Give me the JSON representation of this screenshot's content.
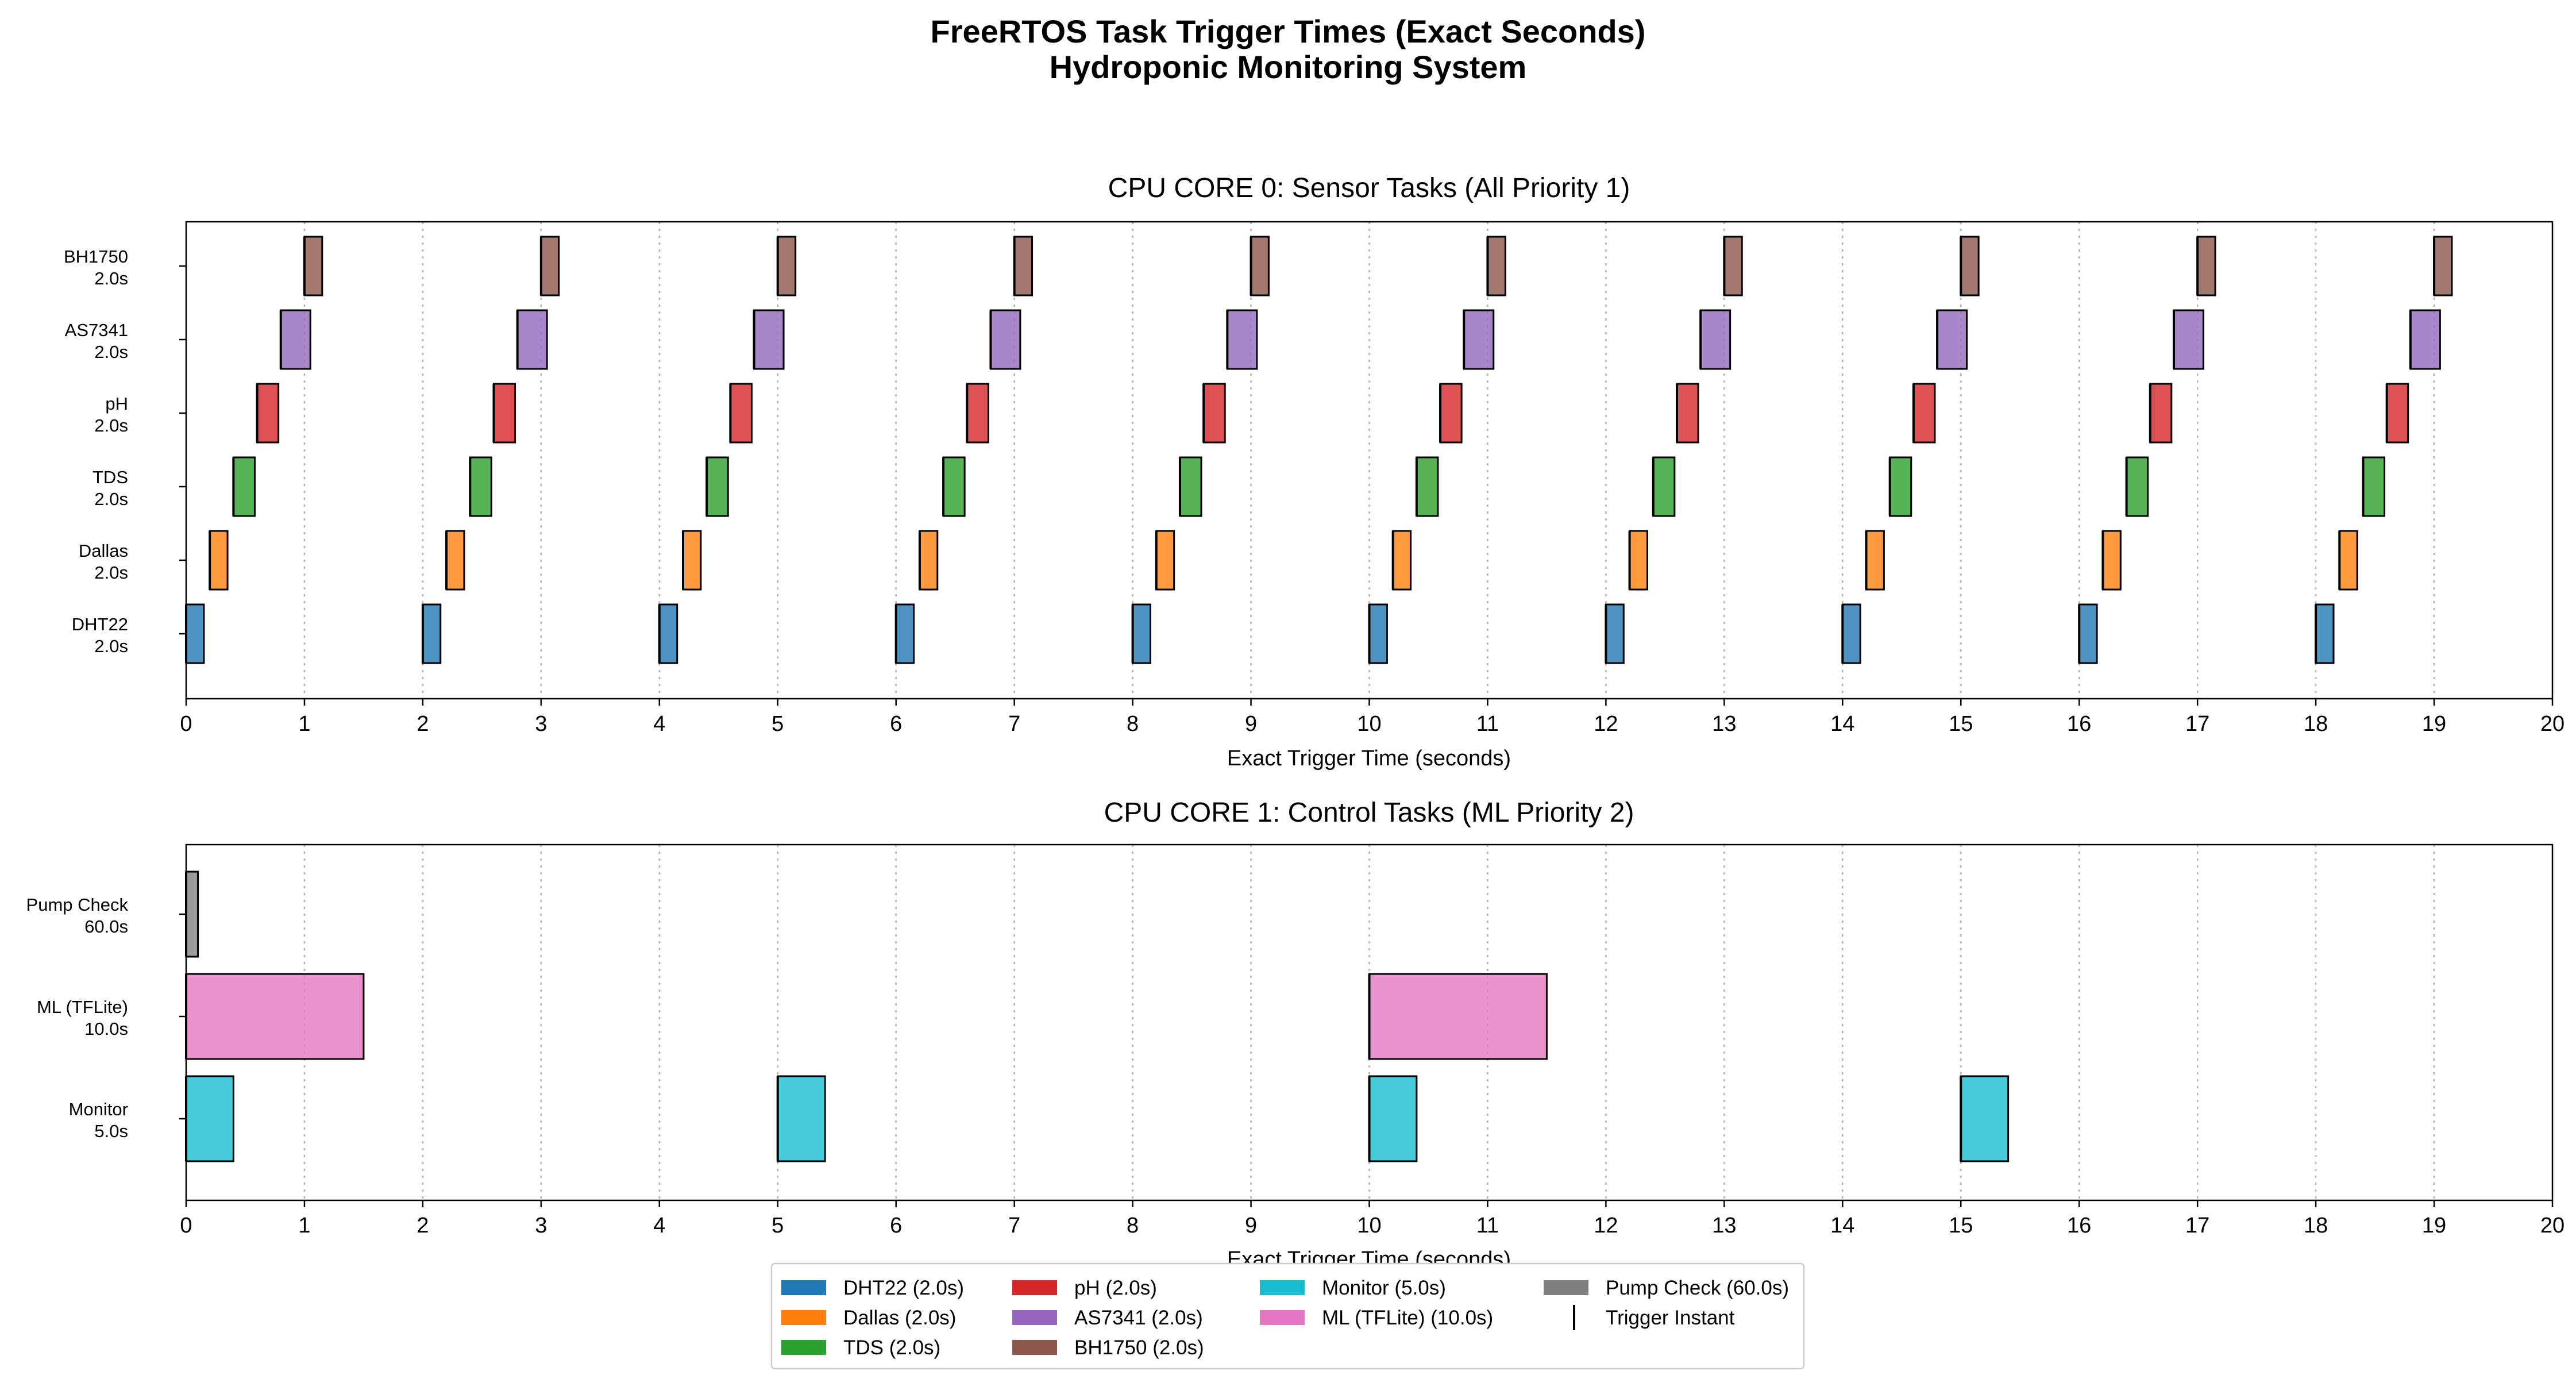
{
  "figure": {
    "title_line1": "FreeRTOS Task Trigger Times (Exact Seconds)",
    "title_line2": "Hydroponic Monitoring System"
  },
  "chart_data": [
    {
      "type": "gantt",
      "title": "CPU CORE 0: Sensor Tasks (All Priority 1)",
      "xlabel": "Exact Trigger Time (seconds)",
      "xlim": [
        0,
        20
      ],
      "xticks": [
        0,
        1,
        2,
        3,
        4,
        5,
        6,
        7,
        8,
        9,
        10,
        11,
        12,
        13,
        14,
        15,
        16,
        17,
        18,
        19,
        20
      ],
      "grid": "vertical dotted",
      "rows": [
        {
          "name": "DHT22",
          "period": "2.0s",
          "color": "#1f77b4",
          "bars": [
            [
              0,
              0.15
            ],
            [
              2,
              2.15
            ],
            [
              4,
              4.15
            ],
            [
              6,
              6.15
            ],
            [
              8,
              8.15
            ],
            [
              10,
              10.15
            ],
            [
              12,
              12.15
            ],
            [
              14,
              14.15
            ],
            [
              16,
              16.15
            ],
            [
              18,
              18.15
            ]
          ]
        },
        {
          "name": "Dallas",
          "period": "2.0s",
          "color": "#ff7f0e",
          "bars": [
            [
              0.2,
              0.35
            ],
            [
              2.2,
              2.35
            ],
            [
              4.2,
              4.35
            ],
            [
              6.2,
              6.35
            ],
            [
              8.2,
              8.35
            ],
            [
              10.2,
              10.35
            ],
            [
              12.2,
              12.35
            ],
            [
              14.2,
              14.35
            ],
            [
              16.2,
              16.35
            ],
            [
              18.2,
              18.35
            ]
          ]
        },
        {
          "name": "TDS",
          "period": "2.0s",
          "color": "#2ca02c",
          "bars": [
            [
              0.4,
              0.58
            ],
            [
              2.4,
              2.58
            ],
            [
              4.4,
              4.58
            ],
            [
              6.4,
              6.58
            ],
            [
              8.4,
              8.58
            ],
            [
              10.4,
              10.58
            ],
            [
              12.4,
              12.58
            ],
            [
              14.4,
              14.58
            ],
            [
              16.4,
              16.58
            ],
            [
              18.4,
              18.58
            ]
          ]
        },
        {
          "name": "pH",
          "period": "2.0s",
          "color": "#d62728",
          "bars": [
            [
              0.6,
              0.78
            ],
            [
              2.6,
              2.78
            ],
            [
              4.6,
              4.78
            ],
            [
              6.6,
              6.78
            ],
            [
              8.6,
              8.78
            ],
            [
              10.6,
              10.78
            ],
            [
              12.6,
              12.78
            ],
            [
              14.6,
              14.78
            ],
            [
              16.6,
              16.78
            ],
            [
              18.6,
              18.78
            ]
          ]
        },
        {
          "name": "AS7341",
          "period": "2.0s",
          "color": "#9467bd",
          "bars": [
            [
              0.8,
              1.05
            ],
            [
              2.8,
              3.05
            ],
            [
              4.8,
              5.05
            ],
            [
              6.8,
              7.05
            ],
            [
              8.8,
              9.05
            ],
            [
              10.8,
              11.05
            ],
            [
              12.8,
              13.05
            ],
            [
              14.8,
              15.05
            ],
            [
              16.8,
              17.05
            ],
            [
              18.8,
              19.05
            ]
          ]
        },
        {
          "name": "BH1750",
          "period": "2.0s",
          "color": "#8c564b",
          "bars": [
            [
              1,
              1.15
            ],
            [
              3,
              3.15
            ],
            [
              5,
              5.15
            ],
            [
              7,
              7.15
            ],
            [
              9,
              9.15
            ],
            [
              11,
              11.15
            ],
            [
              13,
              13.15
            ],
            [
              15,
              15.15
            ],
            [
              17,
              17.15
            ],
            [
              19,
              19.15
            ]
          ]
        }
      ]
    },
    {
      "type": "gantt",
      "title": "CPU CORE 1: Control Tasks (ML Priority 2)",
      "xlabel": "Exact Trigger Time (seconds)",
      "xlim": [
        0,
        20
      ],
      "xticks": [
        0,
        1,
        2,
        3,
        4,
        5,
        6,
        7,
        8,
        9,
        10,
        11,
        12,
        13,
        14,
        15,
        16,
        17,
        18,
        19,
        20
      ],
      "grid": "vertical dotted",
      "rows": [
        {
          "name": "Monitor",
          "period": "5.0s",
          "color": "#17becf",
          "bars": [
            [
              0,
              0.4
            ],
            [
              5,
              5.4
            ],
            [
              10,
              10.4
            ],
            [
              15,
              15.4
            ]
          ]
        },
        {
          "name": "ML (TFLite)",
          "period": "10.0s",
          "color": "#e377c2",
          "bars": [
            [
              0,
              1.5
            ],
            [
              10,
              11.5
            ]
          ]
        },
        {
          "name": "Pump Check",
          "period": "60.0s",
          "color": "#7f7f7f",
          "bars": [
            [
              0,
              0.1
            ]
          ]
        }
      ]
    }
  ],
  "legend": {
    "location": "bottom-center",
    "columns": [
      [
        {
          "label": "DHT22 (2.0s)",
          "color": "#1f77b4"
        },
        {
          "label": "Dallas (2.0s)",
          "color": "#ff7f0e"
        },
        {
          "label": "TDS (2.0s)",
          "color": "#2ca02c"
        }
      ],
      [
        {
          "label": "pH (2.0s)",
          "color": "#d62728"
        },
        {
          "label": "AS7341 (2.0s)",
          "color": "#9467bd"
        },
        {
          "label": "BH1750 (2.0s)",
          "color": "#8c564b"
        }
      ],
      [
        {
          "label": "Monitor (5.0s)",
          "color": "#17becf"
        },
        {
          "label": "ML (TFLite) (10.0s)",
          "color": "#e377c2"
        }
      ],
      [
        {
          "label": "Pump Check (60.0s)",
          "color": "#7f7f7f"
        },
        {
          "label": "Trigger Instant",
          "color": "#000000",
          "marker": "vline"
        }
      ]
    ]
  }
}
